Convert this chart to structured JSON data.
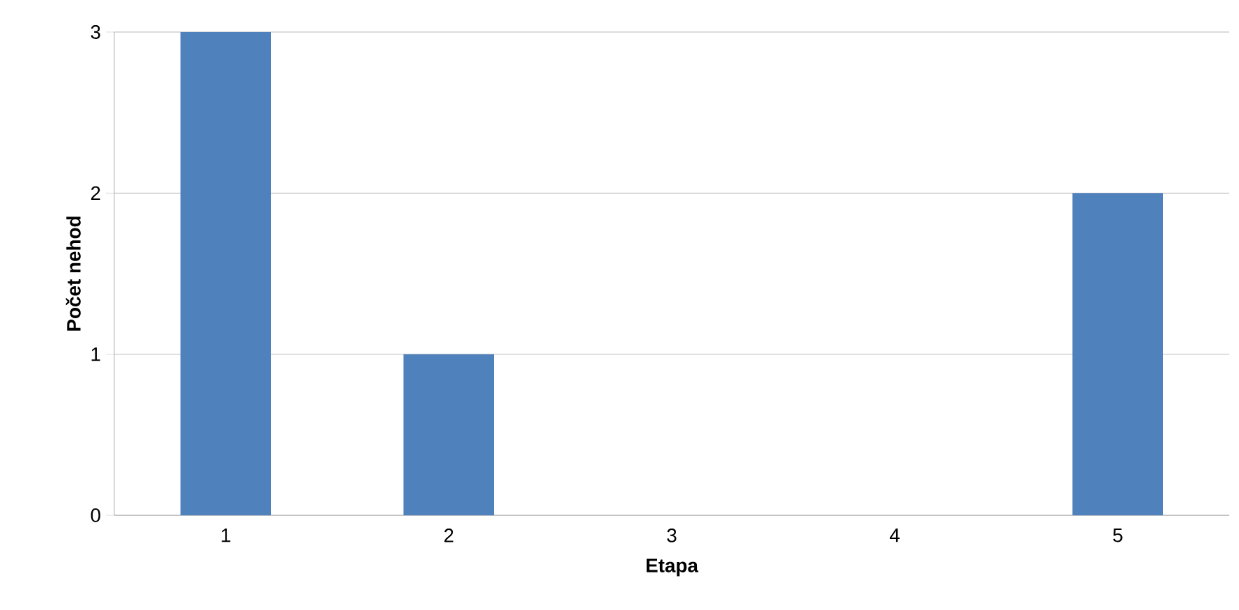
{
  "chart_data": {
    "type": "bar",
    "xlabel": "Etapa",
    "ylabel": "Počet nehod",
    "categories": [
      "1",
      "2",
      "3",
      "4",
      "5"
    ],
    "values": [
      3,
      1,
      0,
      0,
      2
    ],
    "color": "#4f81bd",
    "ylim": [
      0,
      3
    ],
    "yticks": [
      0,
      1,
      2,
      3
    ],
    "grid": "y"
  }
}
